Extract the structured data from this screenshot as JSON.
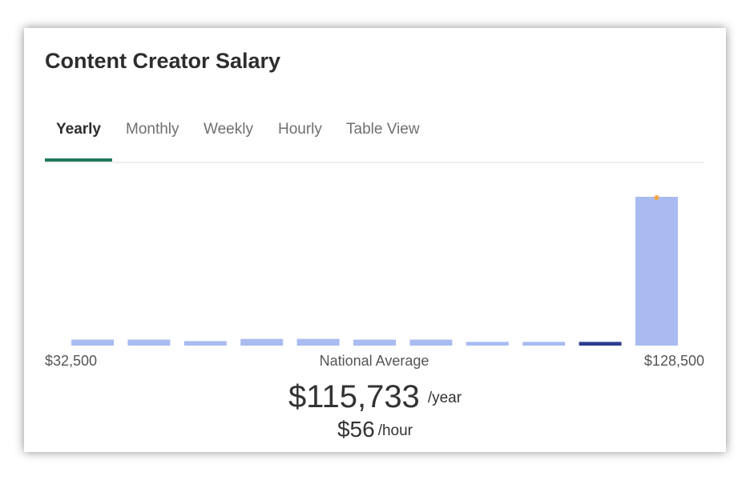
{
  "header": {
    "title": "Content Creator Salary"
  },
  "tabs": [
    "Yearly",
    "Monthly",
    "Weekly",
    "Hourly",
    "Table View"
  ],
  "active_tab": 0,
  "chart_data": {
    "type": "bar",
    "values": [
      4,
      4,
      3,
      4.5,
      4.5,
      4,
      4,
      2.5,
      2.5,
      2.5,
      100
    ],
    "colors": [
      "#a9bbf1",
      "#a9bbf1",
      "#a9bbf1",
      "#a9bbf1",
      "#a9bbf1",
      "#a9bbf1",
      "#a9bbf1",
      "#a9bbf1",
      "#a9bbf1",
      "#2b3d8f",
      "#a9bbf1"
    ],
    "ylim": [
      0,
      100
    ],
    "min_label": "$32,500",
    "center_label": "National Average",
    "max_label": "$128,500"
  },
  "summary": {
    "yearly": "$115,733",
    "yearly_unit": "/year",
    "hourly": "$56",
    "hourly_unit": "/hour"
  }
}
